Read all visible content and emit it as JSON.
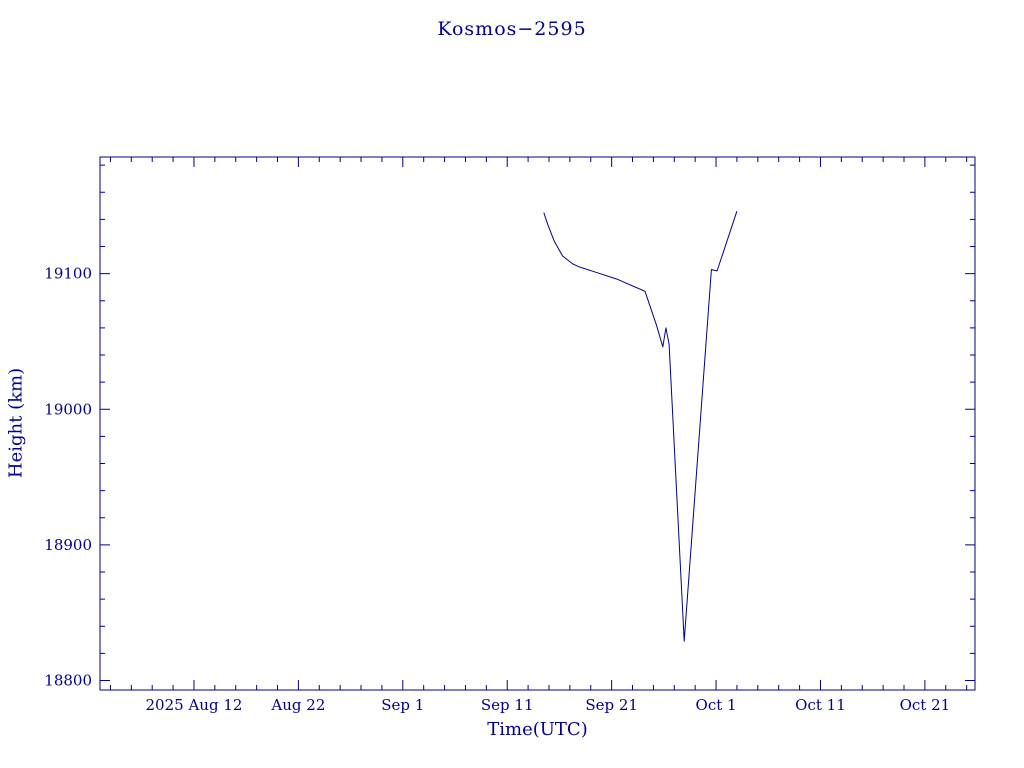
{
  "page": {
    "background": "#ffffff"
  },
  "chart_data": {
    "type": "line",
    "title": "Kosmos−2595",
    "xlabel": "Time(UTC)",
    "ylabel": "Height (km)",
    "axis_color": "#00008B",
    "line_color": "#00008B",
    "grid": false,
    "legend": "none",
    "x_axis_unit": "days relative to 2025 Aug 12 (UTC)",
    "xlim": [
      -9,
      74.8
    ],
    "ylim": [
      18793,
      19186
    ],
    "x_ticks": [
      {
        "pos": 0,
        "label": "2025 Aug 12"
      },
      {
        "pos": 10,
        "label": "Aug 22"
      },
      {
        "pos": 20,
        "label": "Sep 1"
      },
      {
        "pos": 30,
        "label": "Sep 11"
      },
      {
        "pos": 40,
        "label": "Sep 21"
      },
      {
        "pos": 50,
        "label": "Oct 1"
      },
      {
        "pos": 60,
        "label": "Oct 11"
      },
      {
        "pos": 70,
        "label": "Oct 21"
      }
    ],
    "y_ticks": [
      {
        "pos": 18800,
        "label": "18800"
      },
      {
        "pos": 18900,
        "label": "18900"
      },
      {
        "pos": 19000,
        "label": "19000"
      },
      {
        "pos": 19100,
        "label": "19100"
      }
    ],
    "x_minor_step": 2,
    "y_minor_step": 20,
    "series": [
      {
        "name": "height-km",
        "points": [
          [
            33.5,
            19145
          ],
          [
            33.9,
            19136
          ],
          [
            34.5,
            19124
          ],
          [
            35.3,
            19113
          ],
          [
            36.3,
            19107
          ],
          [
            36.9,
            19105
          ],
          [
            38.5,
            19101
          ],
          [
            40.5,
            19096
          ],
          [
            43.2,
            19087
          ],
          [
            44.3,
            19062
          ],
          [
            44.9,
            19046
          ],
          [
            45.2,
            19060
          ],
          [
            45.5,
            19048
          ],
          [
            46.95,
            18829
          ],
          [
            49.55,
            19103
          ],
          [
            50.1,
            19102
          ],
          [
            52.0,
            19146
          ]
        ]
      }
    ]
  }
}
